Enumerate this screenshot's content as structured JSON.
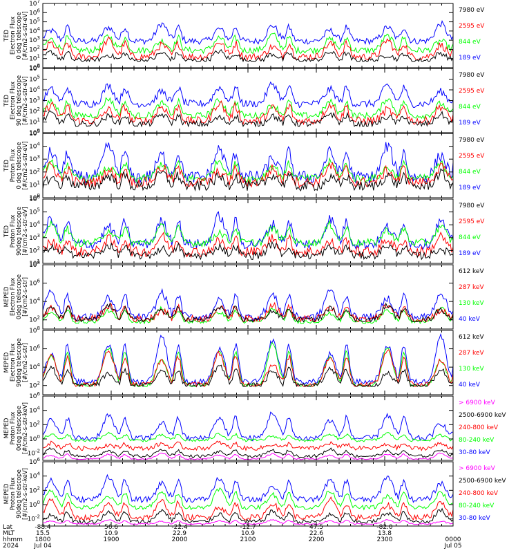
{
  "colors": {
    "black": "#000000",
    "blue": "#0000ff",
    "red": "#ff0000",
    "green": "#00ff00",
    "magenta": "#ff00ff"
  },
  "chart_data": [
    {
      "type": "line",
      "log_scale": true,
      "ylabel": [
        "TED",
        "Electron Flux",
        "0 deg telescope",
        "[#/cm2-s-str-eV]"
      ],
      "yticks": [
        "10^0",
        "10^1",
        "10^2",
        "10^3",
        "10^4",
        "10^5",
        "10^6",
        "10^7"
      ],
      "ylim_exp": [
        0,
        7
      ],
      "legend": [
        {
          "label": "7980 eV",
          "color": "black"
        },
        {
          "label": "2595 eV",
          "color": "red"
        },
        {
          "label": "844 eV",
          "color": "green"
        },
        {
          "label": "189 eV",
          "color": "blue"
        }
      ],
      "series": [
        {
          "name": "189 eV",
          "color": "blue",
          "baseline": 2.9,
          "floor": 0.9,
          "amp": 1.9,
          "noise": 0.35
        },
        {
          "name": "844 eV",
          "color": "green",
          "baseline": 1.9,
          "floor": 0.8,
          "amp": 1.7,
          "noise": 0.35
        },
        {
          "name": "2595 eV",
          "color": "red",
          "baseline": 1.2,
          "floor": 0.8,
          "amp": 1.8,
          "noise": 0.4
        },
        {
          "name": "7980 eV",
          "color": "black",
          "baseline": 0.8,
          "floor": 0.7,
          "amp": 1.0,
          "noise": 0.3
        }
      ]
    },
    {
      "type": "line",
      "log_scale": true,
      "ylabel": [
        "TED",
        "Electron Flux",
        "90 deg telescope",
        "[#/cm2-s-str-eV]"
      ],
      "yticks": [
        "10^0",
        "10^1",
        "10^2",
        "10^3",
        "10^4",
        "10^5",
        "10^6"
      ],
      "ylim_exp": [
        0,
        6
      ],
      "legend": [
        {
          "label": "7980 eV",
          "color": "black"
        },
        {
          "label": "2595 eV",
          "color": "red"
        },
        {
          "label": "844 eV",
          "color": "green"
        },
        {
          "label": "189 eV",
          "color": "blue"
        }
      ],
      "series": [
        {
          "name": "189 eV",
          "color": "blue",
          "baseline": 2.7,
          "floor": 0.9,
          "amp": 1.9,
          "noise": 0.35
        },
        {
          "name": "844 eV",
          "color": "green",
          "baseline": 1.6,
          "floor": 0.9,
          "amp": 1.6,
          "noise": 0.3
        },
        {
          "name": "2595 eV",
          "color": "red",
          "baseline": 1.1,
          "floor": 0.8,
          "amp": 1.7,
          "noise": 0.4
        },
        {
          "name": "7980 eV",
          "color": "black",
          "baseline": 0.8,
          "floor": 0.6,
          "amp": 1.0,
          "noise": 0.3
        }
      ]
    },
    {
      "type": "line",
      "log_scale": true,
      "ylabel": [
        "TED",
        "Proton Flux",
        "0 deg telescope",
        "[#/cm2-s-str-eV]"
      ],
      "yticks": [
        "10^0",
        "10^1",
        "10^2",
        "10^3",
        "10^4",
        "10^5"
      ],
      "ylim_exp": [
        0,
        5
      ],
      "legend": [
        {
          "label": "7980 eV",
          "color": "black"
        },
        {
          "label": "2595 eV",
          "color": "red"
        },
        {
          "label": "844 eV",
          "color": "green"
        },
        {
          "label": "189 eV",
          "color": "blue"
        }
      ],
      "series": [
        {
          "name": "189 eV",
          "color": "blue",
          "baseline": 1.6,
          "floor": 0.6,
          "amp": 2.4,
          "noise": 0.5
        },
        {
          "name": "844 eV",
          "color": "green",
          "baseline": 1.5,
          "floor": 0.9,
          "amp": 1.4,
          "noise": 0.3
        },
        {
          "name": "2595 eV",
          "color": "red",
          "baseline": 1.2,
          "floor": 0.6,
          "amp": 1.3,
          "noise": 0.4
        },
        {
          "name": "7980 eV",
          "color": "black",
          "baseline": 0.9,
          "floor": 0.4,
          "amp": 1.0,
          "noise": 0.4
        }
      ]
    },
    {
      "type": "line",
      "log_scale": true,
      "ylabel": [
        "TED",
        "Proton Flux",
        "90deg telescope",
        "[#/cm2-s-str-eV]"
      ],
      "yticks": [
        "10^1",
        "10^2",
        "10^3",
        "10^4",
        "10^5",
        "10^6"
      ],
      "ylim_exp": [
        1,
        6
      ],
      "legend": [
        {
          "label": "7980 eV",
          "color": "black"
        },
        {
          "label": "2595 eV",
          "color": "red"
        },
        {
          "label": "844 eV",
          "color": "green"
        },
        {
          "label": "189 eV",
          "color": "blue"
        }
      ],
      "series": [
        {
          "name": "189 eV",
          "color": "blue",
          "baseline": 2.5,
          "floor": 1.4,
          "amp": 2.2,
          "noise": 0.4
        },
        {
          "name": "844 eV",
          "color": "green",
          "baseline": 2.6,
          "floor": 1.6,
          "amp": 1.4,
          "noise": 0.3
        },
        {
          "name": "2595 eV",
          "color": "red",
          "baseline": 1.9,
          "floor": 1.3,
          "amp": 1.2,
          "noise": 0.4
        },
        {
          "name": "7980 eV",
          "color": "black",
          "baseline": 1.6,
          "floor": 1.2,
          "amp": 0.9,
          "noise": 0.3
        }
      ]
    },
    {
      "type": "line",
      "log_scale": true,
      "ylabel": [
        "MEPED",
        "Electron Flux",
        "0deg telescope",
        "[#/cm2-s-str]"
      ],
      "yticks": [
        "10^2",
        "10^4",
        "10^6",
        "10^8"
      ],
      "ylim_exp": [
        1,
        8
      ],
      "legend": [
        {
          "label": "612 keV",
          "color": "black"
        },
        {
          "label": "287 keV",
          "color": "red"
        },
        {
          "label": "130 keV",
          "color": "green"
        },
        {
          "label": "40 keV",
          "color": "blue"
        }
      ],
      "series": [
        {
          "name": "40 keV",
          "color": "blue",
          "baseline": 2.3,
          "floor": 1.8,
          "amp": 3.0,
          "noise": 0.4
        },
        {
          "name": "130 keV",
          "color": "green",
          "baseline": 1.8,
          "floor": 1.6,
          "amp": 1.5,
          "noise": 0.2
        },
        {
          "name": "287 keV",
          "color": "red",
          "baseline": 2.1,
          "floor": 1.8,
          "amp": 1.6,
          "noise": 0.4
        },
        {
          "name": "612 keV",
          "color": "black",
          "baseline": 2.0,
          "floor": 1.8,
          "amp": 1.6,
          "noise": 0.3
        }
      ]
    },
    {
      "type": "line",
      "log_scale": true,
      "ylabel": [
        "MEPED",
        "Electron Flux",
        "90deg telescope",
        "[#/cm2-s-str]"
      ],
      "yticks": [
        "10^2",
        "10^4",
        "10^6",
        "10^8"
      ],
      "ylim_exp": [
        1,
        8
      ],
      "legend": [
        {
          "label": "612 keV",
          "color": "black"
        },
        {
          "label": "287 keV",
          "color": "red"
        },
        {
          "label": "130 keV",
          "color": "green"
        },
        {
          "label": "40 keV",
          "color": "blue"
        }
      ],
      "series": [
        {
          "name": "40 keV",
          "color": "blue",
          "baseline": 2.4,
          "floor": 1.9,
          "amp": 5.0,
          "noise": 0.3
        },
        {
          "name": "130 keV",
          "color": "green",
          "baseline": 2.0,
          "floor": 1.9,
          "amp": 4.6,
          "noise": 0.2
        },
        {
          "name": "287 keV",
          "color": "red",
          "baseline": 2.1,
          "floor": 1.9,
          "amp": 3.8,
          "noise": 0.3
        },
        {
          "name": "612 keV",
          "color": "black",
          "baseline": 2.0,
          "floor": 1.9,
          "amp": 2.2,
          "noise": 0.3
        }
      ]
    },
    {
      "type": "line",
      "log_scale": true,
      "ylabel": [
        "MEPED",
        "Proton Flux",
        "0deg telescope",
        "[#/cm2-s-str-keV]"
      ],
      "yticks": [
        "10^-2",
        "10^0",
        "10^2",
        "10^4",
        "10^6"
      ],
      "ylim_exp": [
        -3,
        6
      ],
      "legend": [
        {
          "label": "> 6900 keV",
          "color": "magenta"
        },
        {
          "label": "2500-6900 keV",
          "color": "black"
        },
        {
          "label": "240-800 keV",
          "color": "red"
        },
        {
          "label": "80-240 keV",
          "color": "green"
        },
        {
          "label": "30-80 keV",
          "color": "blue"
        }
      ],
      "series": [
        {
          "name": "30-80 keV",
          "color": "blue",
          "baseline": 0.1,
          "floor": -0.3,
          "amp": 3.6,
          "noise": 0.4
        },
        {
          "name": "80-240 keV",
          "color": "green",
          "baseline": -0.2,
          "floor": -0.4,
          "amp": 1.0,
          "noise": 0.2
        },
        {
          "name": "240-800 keV",
          "color": "red",
          "baseline": -1.3,
          "floor": -1.6,
          "amp": 0.8,
          "noise": 0.3
        },
        {
          "name": "2500-6900 keV",
          "color": "black",
          "baseline": -2.4,
          "floor": -2.6,
          "amp": 1.0,
          "noise": 0.2
        },
        {
          "name": "> 6900 keV",
          "color": "magenta",
          "baseline": -2.8,
          "floor": -2.9,
          "amp": 0.8,
          "noise": 0.1
        }
      ]
    },
    {
      "type": "line",
      "log_scale": true,
      "ylabel": [
        "MEPED",
        "Proton Flux",
        "90deg telescope",
        "[#/cm2-s-str-keV]"
      ],
      "yticks": [
        "10^-2",
        "10^0",
        "10^2",
        "10^4",
        "10^6"
      ],
      "ylim_exp": [
        -3,
        6
      ],
      "legend": [
        {
          "label": "> 6900 keV",
          "color": "magenta"
        },
        {
          "label": "2500-6900 keV",
          "color": "black"
        },
        {
          "label": "240-800 keV",
          "color": "red"
        },
        {
          "label": "80-240 keV",
          "color": "green"
        },
        {
          "label": "30-80 keV",
          "color": "blue"
        }
      ],
      "series": [
        {
          "name": "30-80 keV",
          "color": "blue",
          "baseline": 0.7,
          "floor": 0.2,
          "amp": 3.3,
          "noise": 0.4
        },
        {
          "name": "80-240 keV",
          "color": "green",
          "baseline": -0.4,
          "floor": -0.8,
          "amp": 2.6,
          "noise": 0.3
        },
        {
          "name": "240-800 keV",
          "color": "red",
          "baseline": -1.8,
          "floor": -2.2,
          "amp": 2.5,
          "noise": 0.4
        },
        {
          "name": "2500-6900 keV",
          "color": "black",
          "baseline": -2.4,
          "floor": -2.7,
          "amp": 1.6,
          "noise": 0.3
        },
        {
          "name": "> 6900 keV",
          "color": "magenta",
          "baseline": -2.7,
          "floor": -2.9,
          "amp": 0.6,
          "noise": 0.1
        }
      ]
    }
  ],
  "x_axis": {
    "row_labels": [
      "Lat",
      "MLT",
      "hhmm",
      "2024"
    ],
    "ticks": [
      {
        "lat": "-88.4",
        "mlt": "15.5",
        "hhmm": "1800",
        "date": "Jul 04"
      },
      {
        "lat": "56.6",
        "mlt": "10.9",
        "hhmm": "1900",
        "date": ""
      },
      {
        "lat": "-22.4",
        "mlt": "22.9",
        "hhmm": "2000",
        "date": ""
      },
      {
        "lat": "-12.7",
        "mlt": "10.9",
        "hhmm": "2100",
        "date": ""
      },
      {
        "lat": "47.5",
        "mlt": "22.6",
        "hhmm": "2200",
        "date": ""
      },
      {
        "lat": "-82.0",
        "mlt": "13.8",
        "hhmm": "2300",
        "date": ""
      },
      {
        "lat": "",
        "mlt": "",
        "hhmm": "0000",
        "date": "Jul 05"
      }
    ]
  }
}
